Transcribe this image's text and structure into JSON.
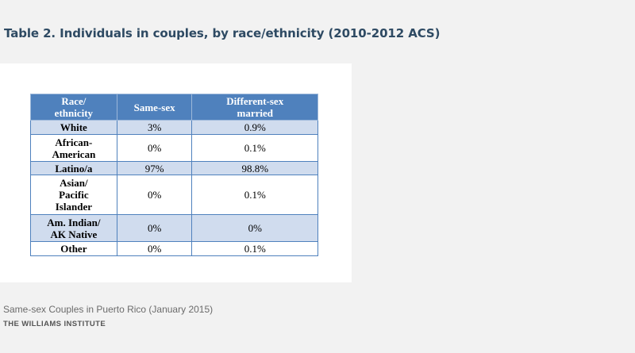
{
  "title": "Table 2. Individuals in couples, by race/ethnicity (2010-2012 ACS)",
  "table": {
    "headers": [
      "Race/\nethnicity",
      "Same-sex",
      "Different-sex\nmarried"
    ],
    "rows": [
      {
        "label": "White",
        "same_sex": "3%",
        "different_sex_married": "0.9%"
      },
      {
        "label": "African-\nAmerican",
        "same_sex": "0%",
        "different_sex_married": "0.1%"
      },
      {
        "label": "Latino/a",
        "same_sex": "97%",
        "different_sex_married": "98.8%"
      },
      {
        "label": "Asian/\nPacific\nIslander",
        "same_sex": "0%",
        "different_sex_married": "0.1%"
      },
      {
        "label": "Am. Indian/\nAK Native",
        "same_sex": "0%",
        "different_sex_married": "0%"
      },
      {
        "label": "Other",
        "same_sex": "0%",
        "different_sex_married": "0.1%"
      }
    ]
  },
  "footer": {
    "caption": "Same-sex Couples in Puerto Rico (January 2015)",
    "org": "THE WILLIAMS INSTITUTE"
  },
  "colors": {
    "header_fill": "#4f81bd",
    "band_fill": "#d0dcee",
    "title_text": "#2e4a63"
  }
}
